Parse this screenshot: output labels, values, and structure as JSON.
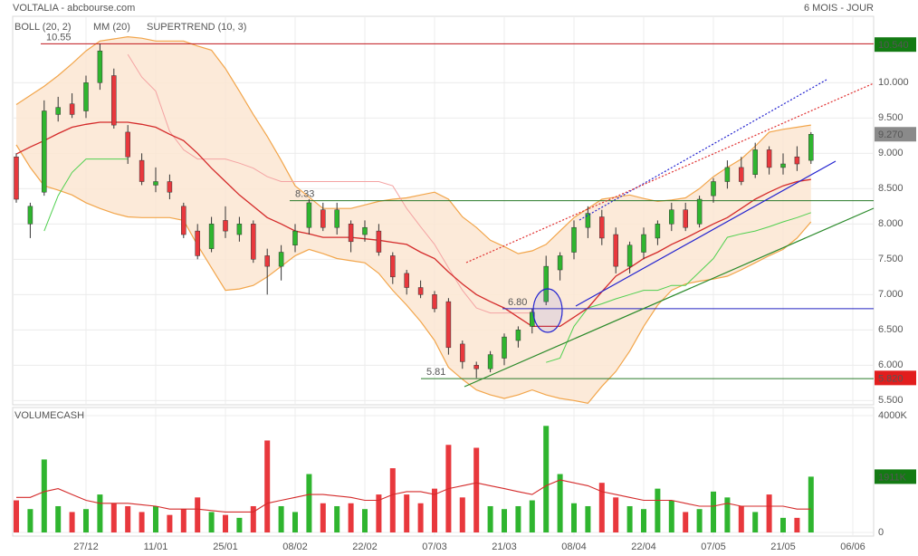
{
  "header": {
    "title": "VOLTALIA - abcbourse.com",
    "period": "6 MOIS - JOUR"
  },
  "chart_data": [
    {
      "type": "candlestick",
      "categories": [
        null,
        null,
        null,
        null,
        null,
        "27/12",
        null,
        null,
        null,
        null,
        "11/01",
        null,
        null,
        null,
        null,
        "25/01",
        null,
        null,
        null,
        null,
        "08/02",
        null,
        null,
        null,
        null,
        "22/02",
        null,
        null,
        null,
        null,
        "07/03",
        null,
        null,
        null,
        null,
        "21/03",
        null,
        null,
        null,
        null,
        "08/04",
        null,
        null,
        null,
        null,
        "22/04",
        null,
        null,
        null,
        null,
        "07/05",
        null,
        null,
        null,
        null,
        "21/05",
        null,
        null,
        null,
        null,
        "06/06"
      ],
      "open": [
        8.95,
        8.0,
        8.45,
        9.55,
        9.7,
        9.6,
        10.0,
        10.1,
        9.3,
        8.9,
        8.55,
        8.6,
        8.25,
        7.9,
        7.65,
        8.05,
        7.85,
        8.0,
        7.55,
        7.4,
        7.7,
        7.95,
        8.2,
        7.95,
        8.0,
        7.85,
        7.9,
        7.55,
        7.3,
        7.1,
        7.0,
        6.9,
        6.3,
        6.0,
        5.95,
        6.1,
        6.35,
        6.55,
        6.9,
        7.35,
        7.6,
        7.95,
        8.1,
        7.85,
        7.4,
        7.6,
        7.8,
        8.0,
        8.2,
        8.0,
        8.4,
        8.6,
        8.8,
        8.7,
        9.05,
        8.8,
        8.95,
        8.9,
        null,
        null,
        null
      ],
      "high": [
        9.0,
        8.3,
        9.75,
        9.8,
        9.85,
        10.1,
        10.55,
        10.2,
        9.4,
        9.0,
        8.8,
        8.7,
        8.3,
        8.0,
        8.1,
        8.25,
        8.1,
        8.05,
        7.65,
        7.7,
        8.0,
        8.35,
        8.3,
        8.3,
        8.05,
        8.05,
        8.0,
        7.6,
        7.35,
        7.2,
        7.05,
        6.95,
        6.35,
        6.05,
        6.2,
        6.45,
        6.55,
        6.8,
        7.55,
        7.6,
        8.05,
        8.25,
        8.2,
        7.95,
        7.75,
        7.95,
        8.05,
        8.3,
        8.3,
        8.4,
        8.65,
        8.9,
        8.95,
        9.15,
        9.1,
        9.0,
        9.1,
        9.3,
        null,
        null,
        null
      ],
      "low": [
        8.3,
        7.8,
        8.4,
        9.45,
        9.5,
        9.5,
        9.9,
        9.35,
        8.85,
        8.55,
        8.45,
        8.35,
        7.8,
        7.5,
        7.6,
        7.8,
        7.75,
        7.45,
        7.0,
        7.2,
        7.6,
        7.85,
        7.9,
        7.85,
        7.6,
        7.75,
        7.55,
        7.15,
        7.0,
        6.95,
        6.75,
        6.15,
        5.95,
        5.82,
        5.9,
        6.0,
        6.25,
        6.45,
        6.85,
        7.2,
        7.5,
        7.8,
        7.7,
        7.3,
        7.3,
        7.5,
        7.7,
        7.9,
        7.9,
        7.95,
        8.3,
        8.5,
        8.55,
        8.65,
        8.7,
        8.7,
        8.75,
        8.85,
        null,
        null,
        null
      ],
      "close": [
        8.35,
        8.25,
        9.6,
        9.65,
        9.55,
        10.0,
        10.45,
        9.4,
        8.95,
        8.6,
        8.6,
        8.45,
        7.85,
        7.55,
        8.0,
        7.9,
        8.0,
        7.5,
        7.4,
        7.6,
        7.9,
        8.3,
        7.95,
        8.2,
        7.75,
        7.95,
        7.6,
        7.25,
        7.1,
        7.0,
        6.8,
        6.25,
        6.05,
        5.95,
        6.15,
        6.4,
        6.5,
        6.75,
        7.4,
        7.55,
        7.95,
        8.15,
        7.8,
        7.4,
        7.7,
        7.85,
        8.0,
        8.2,
        7.95,
        8.35,
        8.6,
        8.8,
        8.6,
        9.05,
        8.8,
        8.85,
        8.85,
        9.27,
        null,
        null,
        null
      ],
      "up_color": "#2fb52f",
      "down_color": "#e8383d",
      "bollinger": {
        "name": "BOLL (20, 2)",
        "color": "#f2a54a",
        "fill": "#fbe6d2",
        "upper": [
          9.69,
          9.82,
          9.95,
          10.1,
          10.27,
          10.45,
          10.59,
          10.62,
          10.65,
          10.63,
          10.59,
          10.59,
          10.59,
          10.52,
          10.46,
          10.2,
          9.88,
          9.55,
          9.24,
          8.9,
          8.54,
          8.38,
          8.22,
          8.22,
          8.22,
          8.27,
          8.32,
          8.35,
          8.37,
          8.41,
          8.45,
          8.35,
          8.1,
          7.95,
          7.77,
          7.68,
          7.58,
          7.62,
          7.71,
          7.9,
          8.09,
          8.22,
          8.35,
          8.38,
          8.41,
          8.36,
          8.32,
          8.34,
          8.37,
          8.5,
          8.67,
          8.8,
          8.92,
          9.1,
          9.3,
          9.34,
          9.37,
          9.4,
          null,
          null,
          null
        ],
        "lower": [
          9.12,
          8.8,
          8.54,
          8.48,
          8.41,
          8.3,
          8.22,
          8.15,
          8.1,
          8.09,
          8.09,
          8.09,
          8.05,
          7.7,
          7.38,
          7.06,
          7.08,
          7.13,
          7.25,
          7.4,
          7.55,
          7.64,
          7.58,
          7.51,
          7.48,
          7.45,
          7.3,
          7.06,
          6.85,
          6.62,
          6.35,
          5.97,
          5.8,
          5.65,
          5.58,
          5.53,
          5.58,
          5.65,
          5.58,
          5.53,
          5.5,
          5.46,
          5.7,
          5.91,
          6.2,
          6.55,
          6.85,
          7.06,
          7.15,
          7.19,
          7.22,
          7.26,
          7.35,
          7.45,
          7.55,
          7.64,
          7.8,
          8.03,
          null,
          null,
          null
        ]
      },
      "mm": {
        "name": "MM (20)",
        "color": "#d42a2a",
        "values": [
          8.99,
          9.09,
          9.18,
          9.28,
          9.37,
          9.41,
          9.44,
          9.44,
          9.44,
          9.41,
          9.37,
          9.27,
          9.18,
          9.0,
          8.79,
          8.6,
          8.41,
          8.25,
          8.09,
          8.0,
          7.9,
          7.86,
          7.81,
          7.81,
          7.81,
          7.79,
          7.77,
          7.74,
          7.71,
          7.6,
          7.51,
          7.32,
          7.15,
          7.0,
          6.9,
          6.81,
          6.68,
          6.55,
          6.55,
          6.55,
          6.68,
          6.81,
          7.04,
          7.26,
          7.38,
          7.51,
          7.6,
          7.71,
          7.8,
          7.9,
          8.0,
          8.09,
          8.22,
          8.35,
          8.45,
          8.54,
          8.6,
          8.63,
          null,
          null,
          null
        ]
      },
      "supertrend": {
        "name": "SUPERTREND (10, 3)",
        "color": "#f4a3a3",
        "up_color": "#4fd04f",
        "up": [
          null,
          null,
          7.9,
          8.4,
          8.73,
          8.92,
          8.92,
          8.92,
          8.92,
          null,
          null,
          null,
          null,
          null,
          null,
          null,
          null,
          null,
          null,
          null,
          null,
          null,
          null,
          null,
          null,
          null,
          null,
          null,
          null,
          null,
          null,
          null,
          null,
          null,
          null,
          null,
          null,
          null,
          6.04,
          6.1,
          6.55,
          6.81,
          6.87,
          6.94,
          7.0,
          7.06,
          7.06,
          7.13,
          7.13,
          7.32,
          7.51,
          7.81,
          7.86,
          7.9,
          7.96,
          8.03,
          8.09,
          8.16,
          null,
          null,
          null
        ],
        "down": [
          null,
          null,
          null,
          null,
          null,
          null,
          null,
          null,
          10.4,
          10.08,
          9.88,
          9.31,
          9.05,
          8.92,
          8.92,
          8.92,
          8.86,
          8.79,
          8.67,
          8.6,
          8.6,
          8.6,
          8.6,
          8.6,
          8.6,
          8.6,
          8.6,
          8.54,
          8.22,
          7.96,
          7.71,
          7.38,
          7.06,
          6.81,
          6.74,
          6.74,
          6.74,
          6.74,
          null,
          null,
          null,
          null,
          null,
          null,
          null,
          null,
          null,
          null,
          null,
          null,
          null,
          null,
          null,
          null,
          null,
          null,
          null,
          null,
          null,
          null,
          null
        ]
      },
      "levels": [
        {
          "value": 10.55,
          "label": "10.55",
          "color": "#c0161b"
        },
        {
          "value": 8.33,
          "label": "8.33",
          "color": "#2a7a2a"
        },
        {
          "value": 6.8,
          "label": "6.80",
          "color": "#2323c0"
        },
        {
          "value": 5.81,
          "label": "5.81",
          "color": "#2a7a2a"
        }
      ],
      "price_labels": [
        {
          "value": 10.54,
          "label": "10.540",
          "color": "#137a13"
        },
        {
          "value": 9.27,
          "label": "9.270",
          "color": "#8a8a8a"
        },
        {
          "value": 5.82,
          "label": "5.820",
          "color": "#e21d1d"
        }
      ],
      "ylim": [
        5.44,
        10.94
      ],
      "yticks": [
        {
          "value": 5.5,
          "label": "5.500"
        },
        {
          "value": 6.0,
          "label": "6.000"
        },
        {
          "value": 6.5,
          "label": "6.500"
        },
        {
          "value": 7.0,
          "label": "7.000"
        },
        {
          "value": 7.5,
          "label": "7.500"
        },
        {
          "value": 8.0,
          "label": "8.000"
        },
        {
          "value": 8.5,
          "label": "8.500"
        },
        {
          "value": 9.0,
          "label": "9.000"
        },
        {
          "value": 9.5,
          "label": "9.500"
        },
        {
          "value": 10.0,
          "label": "10.000"
        }
      ],
      "grid": true
    },
    {
      "type": "bar",
      "title": "VOLUMECASH",
      "values": [
        1100,
        800,
        2500,
        900,
        700,
        800,
        1300,
        1000,
        900,
        700,
        900,
        600,
        800,
        1200,
        700,
        600,
        500,
        900,
        3150,
        900,
        700,
        2000,
        1000,
        900,
        1000,
        800,
        1300,
        2200,
        1300,
        1000,
        1500,
        3000,
        1200,
        2900,
        900,
        800,
        900,
        1100,
        3650,
        2000,
        1000,
        900,
        1700,
        1200,
        900,
        800,
        1500,
        1100,
        700,
        800,
        1400,
        1200,
        900,
        700,
        1300,
        500,
        500,
        1911,
        null,
        null,
        null
      ],
      "average": {
        "color": "#d42a2a",
        "values": [
          1200,
          1200,
          1400,
          1500,
          1300,
          1100,
          1000,
          1000,
          1000,
          950,
          900,
          800,
          800,
          800,
          750,
          700,
          700,
          700,
          1000,
          1100,
          1200,
          1300,
          1300,
          1250,
          1200,
          1100,
          1100,
          1300,
          1400,
          1400,
          1300,
          1500,
          1600,
          1700,
          1600,
          1500,
          1400,
          1300,
          1600,
          1800,
          1700,
          1600,
          1400,
          1300,
          1200,
          1100,
          1100,
          1100,
          1000,
          900,
          900,
          1000,
          900,
          900,
          900,
          900,
          800,
          800,
          null,
          null,
          null
        ]
      },
      "price_labels": [
        {
          "value": 1911,
          "label": "1911K",
          "color": "#137a13"
        }
      ],
      "ylim": [
        0,
        4280
      ],
      "yticks": [
        0,
        {
          "value": 4000,
          "label": "4000K"
        }
      ],
      "grid": true
    }
  ]
}
